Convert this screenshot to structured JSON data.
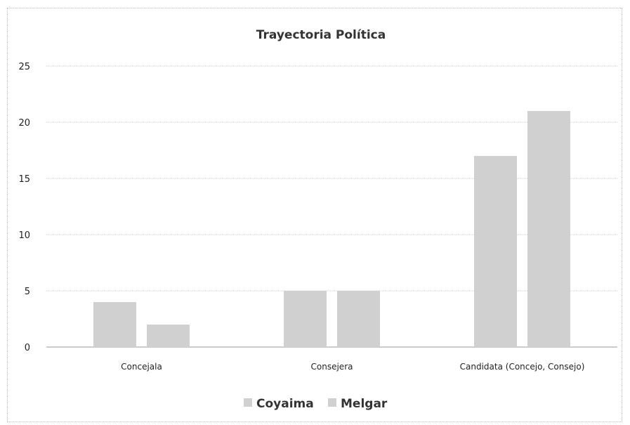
{
  "chart_data": {
    "type": "bar",
    "title": "Trayectoria Política",
    "xlabel": "",
    "ylabel": "",
    "categories": [
      "Concejala",
      "Consejera",
      "Candidata (Concejo, Consejo)"
    ],
    "series": [
      {
        "name": "Coyaima",
        "values": [
          4,
          5,
          17
        ],
        "color": "#d0d0d0"
      },
      {
        "name": "Melgar",
        "values": [
          2,
          5,
          21
        ],
        "color": "#d0d0d0"
      }
    ],
    "ylim": [
      0,
      25
    ],
    "yticks": [
      0,
      5,
      10,
      15,
      20,
      25
    ],
    "grid": true,
    "legend_position": "bottom"
  }
}
